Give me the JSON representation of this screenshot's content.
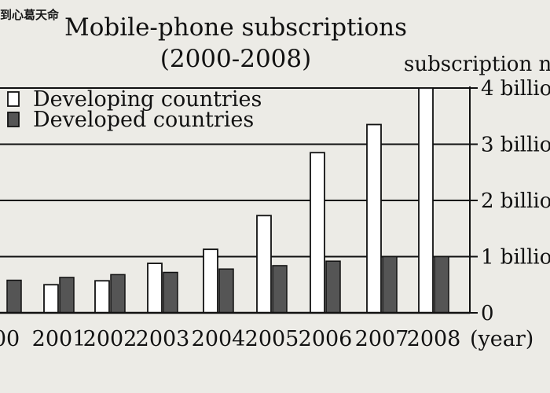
{
  "watermark": "到心葛天命",
  "chart_data": {
    "type": "bar",
    "title": "Mobile-phone subscriptions",
    "subtitle": "(2000-2008)",
    "ylabel": "subscription nu",
    "xlabel": "(year)",
    "categories": [
      "00",
      "2001",
      "2002",
      "2003",
      "2004",
      "2005",
      "2006",
      "2007",
      "2008"
    ],
    "series": [
      {
        "name": "Developing countries",
        "color": "#ffffff",
        "values": [
          0.0,
          0.5,
          0.57,
          0.88,
          1.13,
          1.73,
          2.85,
          3.35,
          4.0
        ]
      },
      {
        "name": "Developed countries",
        "color": "#555555",
        "values": [
          0.58,
          0.63,
          0.68,
          0.72,
          0.78,
          0.84,
          0.92,
          1.0,
          1.0
        ]
      }
    ],
    "yticks": [
      {
        "value": 0,
        "label": "0"
      },
      {
        "value": 1,
        "label": "1 billio"
      },
      {
        "value": 2,
        "label": "2 billio"
      },
      {
        "value": 3,
        "label": "3 billio"
      },
      {
        "value": 4,
        "label": "4 billio"
      }
    ],
    "ylim": [
      0,
      4
    ],
    "grid": true,
    "legend_position": "top-left"
  }
}
